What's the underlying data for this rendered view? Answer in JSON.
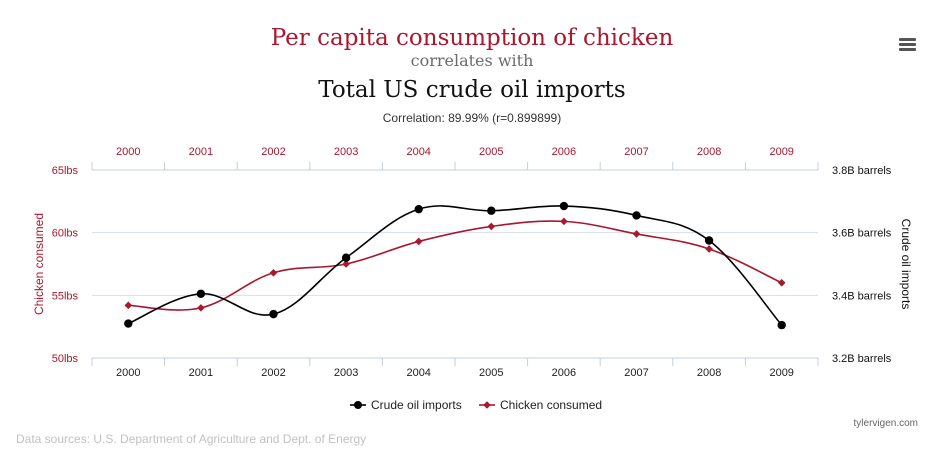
{
  "title_line1": "Per capita consumption of chicken",
  "title_line2": "correlates with",
  "title_line3": "Total US crude oil imports",
  "correlation": "Correlation: 89.99% (r=0.899899)",
  "data_sources": "Data sources: U.S. Department of Agriculture and Dept. of Energy",
  "credit": "tylervigen.com",
  "menu_icon": "hamburger-menu-icon",
  "chart_data": {
    "type": "line",
    "categories": [
      "2000",
      "2001",
      "2002",
      "2003",
      "2004",
      "2005",
      "2006",
      "2007",
      "2008",
      "2009"
    ],
    "left_axis": {
      "label": "Chicken consumed",
      "range": [
        50,
        65
      ],
      "ticks": [
        50,
        55,
        60,
        65
      ],
      "tick_labels": [
        "50lbs",
        "55lbs",
        "60lbs",
        "65lbs"
      ],
      "color": "#a8182f"
    },
    "right_axis": {
      "label": "Crude oil imports",
      "range": [
        3.2,
        3.8
      ],
      "ticks": [
        3.2,
        3.4,
        3.6,
        3.8
      ],
      "tick_labels": [
        "3.2B barrels",
        "3.4B barrels",
        "3.6B barrels",
        "3.8B barrels"
      ],
      "color": "#111111"
    },
    "series": [
      {
        "name": "Crude oil imports",
        "axis": "right",
        "color": "#000000",
        "marker": "circle",
        "values": [
          3.31,
          3.405,
          3.34,
          3.52,
          3.675,
          3.67,
          3.685,
          3.655,
          3.575,
          3.305
        ]
      },
      {
        "name": "Chicken consumed",
        "axis": "left",
        "color": "#a8182f",
        "marker": "diamond",
        "values": [
          54.2,
          54.0,
          56.8,
          57.5,
          59.3,
          60.5,
          60.9,
          59.9,
          58.7,
          56.0
        ]
      }
    ],
    "legend": "bottom-center",
    "grid": true
  }
}
